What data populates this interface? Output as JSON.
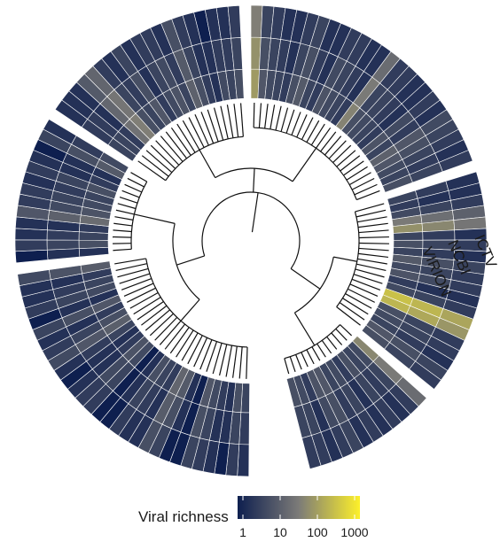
{
  "chart_data": {
    "type": "heatmap",
    "layout": "circular",
    "rings": [
      "VIRION",
      "NCBI",
      "ICTV"
    ],
    "n_leaves": 118,
    "gaps_after_leaf": [
      28,
      41,
      60,
      85,
      105
    ],
    "color_scale": {
      "title": "Viral richness",
      "scale": "log10",
      "domain": [
        1,
        1000
      ],
      "ticks": [
        1,
        10,
        100,
        1000
      ],
      "colors": [
        "#0e1f4f",
        "#7c7b78",
        "#fdf02a"
      ]
    },
    "values": {
      "VIRION": [
        4,
        6,
        2,
        3,
        5,
        8,
        1,
        2,
        9,
        14,
        3,
        4,
        6,
        2,
        1,
        5,
        7,
        3,
        2,
        4,
        11,
        6,
        3,
        8,
        2,
        5,
        4,
        3,
        10,
        2,
        6,
        4,
        3,
        18,
        7,
        5,
        4,
        6,
        3,
        2,
        9,
        5,
        4,
        4,
        3,
        22,
        35,
        6,
        4,
        8,
        3,
        5,
        7,
        4,
        12,
        6,
        3,
        2,
        5,
        4,
        6,
        80,
        8,
        5,
        4,
        3,
        6,
        9,
        4,
        3,
        7,
        5,
        4,
        3,
        40,
        6,
        5,
        4,
        3,
        7,
        4,
        12,
        8,
        5,
        4,
        6,
        4,
        3,
        5,
        30,
        60,
        4,
        6,
        4,
        9,
        5,
        7,
        3,
        5,
        250,
        180,
        6,
        5,
        4,
        8,
        6,
        45,
        5,
        4,
        6,
        3,
        5,
        4,
        8,
        7,
        3,
        5,
        6
      ],
      "NCBI": [
        3,
        4,
        2,
        2,
        4,
        6,
        1,
        2,
        6,
        10,
        2,
        3,
        4,
        2,
        1,
        4,
        5,
        2,
        2,
        3,
        8,
        4,
        2,
        6,
        2,
        4,
        3,
        2,
        7,
        2,
        4,
        3,
        2,
        12,
        5,
        4,
        3,
        4,
        2,
        2,
        6,
        3,
        3,
        3,
        2,
        15,
        25,
        4,
        3,
        6,
        2,
        4,
        5,
        3,
        9,
        4,
        2,
        2,
        3,
        3,
        4,
        60,
        6,
        4,
        3,
        2,
        4,
        6,
        3,
        2,
        5,
        4,
        3,
        2,
        30,
        4,
        4,
        3,
        2,
        5,
        3,
        8,
        6,
        4,
        3,
        4,
        3,
        2,
        4,
        20,
        45,
        3,
        4,
        3,
        6,
        4,
        5,
        2,
        4,
        180,
        120,
        4,
        4,
        3,
        6,
        4,
        30,
        4,
        3,
        4,
        2,
        4,
        3,
        6,
        5,
        2,
        4,
        4
      ],
      "ICTV": [
        2,
        3,
        1,
        2,
        3,
        4,
        1,
        1,
        4,
        6,
        2,
        2,
        3,
        1,
        1,
        3,
        3,
        2,
        1,
        2,
        5,
        3,
        2,
        4,
        1,
        3,
        2,
        2,
        5,
        1,
        3,
        2,
        2,
        8,
        3,
        3,
        2,
        3,
        2,
        1,
        4,
        2,
        2,
        2,
        2,
        9,
        14,
        3,
        2,
        4,
        2,
        3,
        3,
        2,
        6,
        3,
        2,
        1,
        2,
        2,
        3,
        35,
        4,
        3,
        2,
        2,
        3,
        4,
        2,
        2,
        3,
        3,
        2,
        2,
        18,
        3,
        3,
        2,
        2,
        3,
        2,
        5,
        4,
        3,
        2,
        3,
        2,
        2,
        3,
        12,
        25,
        2,
        3,
        2,
        4,
        3,
        3,
        2,
        3,
        110,
        70,
        3,
        3,
        2,
        4,
        3,
        18,
        3,
        2,
        3,
        2,
        3,
        2,
        4,
        3,
        2,
        3,
        3
      ]
    },
    "tree": {
      "type": "cladogram",
      "clades": [
        [
          0,
          28
        ],
        [
          29,
          41
        ],
        [
          42,
          60
        ],
        [
          61,
          85
        ],
        [
          86,
          105
        ],
        [
          106,
          117
        ]
      ]
    }
  }
}
